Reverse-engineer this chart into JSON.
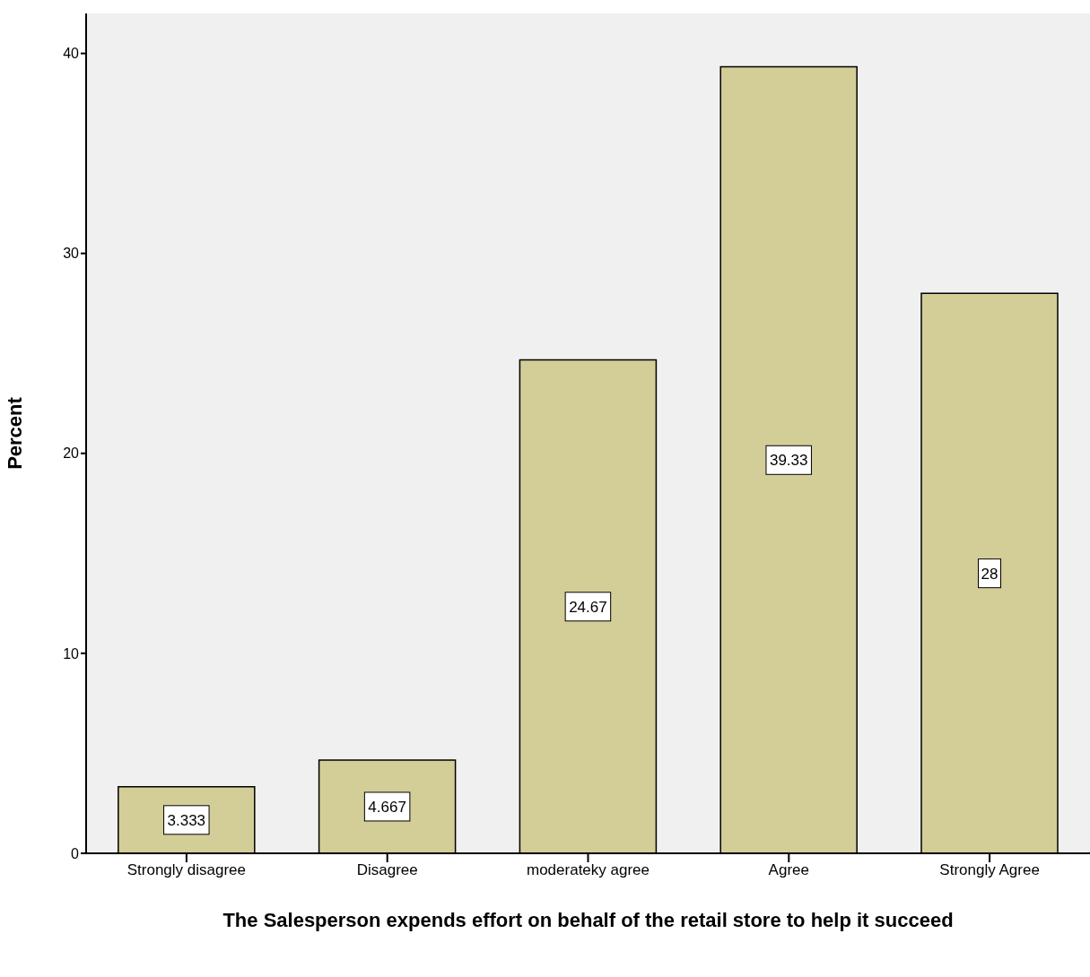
{
  "chart_data": {
    "type": "bar",
    "xlabel": "The Salesperson expends effort on behalf of the retail store to help it succeed",
    "ylabel": "Percent",
    "categories": [
      "Strongly disagree",
      "Disagree",
      "moderateky agree",
      "Agree",
      "Strongly Agree"
    ],
    "values": [
      3.333,
      4.667,
      24.67,
      39.33,
      28
    ],
    "color": "#d3cd97",
    "ylim": [
      0,
      42
    ],
    "yticks": [
      0,
      10,
      20,
      30,
      40
    ],
    "grid": false,
    "data_labels": true
  }
}
